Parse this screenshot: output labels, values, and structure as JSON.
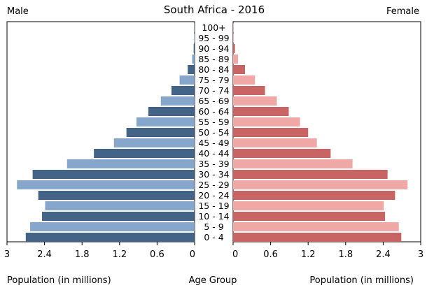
{
  "chart_data": {
    "type": "bar",
    "title": "South Africa - 2016",
    "left_label": "Male",
    "right_label": "Female",
    "xlabel_left": "Population (in millions)",
    "xlabel_center": "Age Group",
    "xlabel_right": "Population (in millions)",
    "xlim": [
      0,
      3
    ],
    "ticks": [
      0,
      0.6,
      1.2,
      1.8,
      2.4,
      3
    ],
    "tick_labels": [
      "0",
      "0.6",
      "1.2",
      "1.8",
      "2.4",
      "3"
    ],
    "categories": [
      "100+",
      "95 - 99",
      "90 - 94",
      "85 - 89",
      "80 - 84",
      "75 - 79",
      "70 - 74",
      "65 - 69",
      "60 - 64",
      "55 - 59",
      "50 - 54",
      "45 - 49",
      "40 - 44",
      "35 - 39",
      "30 - 34",
      "25 - 29",
      "20 - 24",
      "15 - 19",
      "10 - 14",
      "5 - 9",
      "0 - 4"
    ],
    "series": [
      {
        "name": "Male",
        "values": [
          0.001,
          0.005,
          0.015,
          0.04,
          0.11,
          0.24,
          0.37,
          0.54,
          0.74,
          0.93,
          1.09,
          1.29,
          1.61,
          2.04,
          2.59,
          2.84,
          2.5,
          2.39,
          2.44,
          2.63,
          2.7
        ]
      },
      {
        "name": "Female",
        "values": [
          0.003,
          0.01,
          0.03,
          0.08,
          0.19,
          0.35,
          0.51,
          0.7,
          0.89,
          1.07,
          1.2,
          1.34,
          1.56,
          1.91,
          2.47,
          2.79,
          2.59,
          2.41,
          2.43,
          2.65,
          2.69
        ]
      }
    ],
    "colors": {
      "male_dark": "#436487",
      "male_light": "#87a6cb",
      "female_dark": "#c86463",
      "female_light": "#f0a8a7",
      "axis": "#000000"
    }
  }
}
